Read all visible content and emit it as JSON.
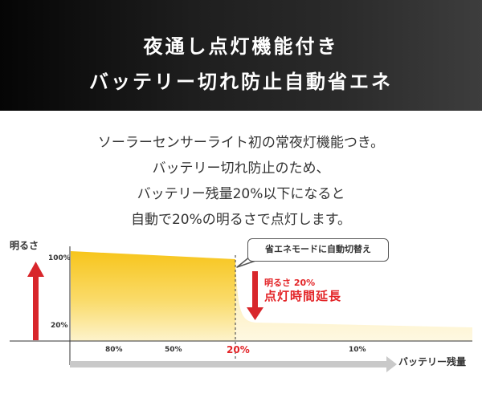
{
  "banner": {
    "line1": "夜通し点灯機能付き",
    "line2": "バッテリー切れ防止自動省エネ"
  },
  "description": [
    "ソーラーセンサーライト初の常夜灯機能つき。",
    "バッテリー切れ防止のため、",
    "バッテリー残量20%以下になると",
    "自動で20%の明るさで点灯します。"
  ],
  "diagram": {
    "y_axis_label": "明るさ",
    "y_ticks": [
      "100%",
      "20%"
    ],
    "x_axis_label": "バッテリー残量",
    "x_ticks": [
      "80%",
      "50%",
      "20%",
      "10%"
    ],
    "callout": "省エネモードに自動切替え",
    "note_small": "明るさ 20%",
    "note_large": "点灯時間延長",
    "colors": {
      "fill_top": "#f7c51c",
      "fill_bottom": "#fdf6d8",
      "accent_red": "#d8262b",
      "axis_gray": "#c9c9c9"
    }
  }
}
